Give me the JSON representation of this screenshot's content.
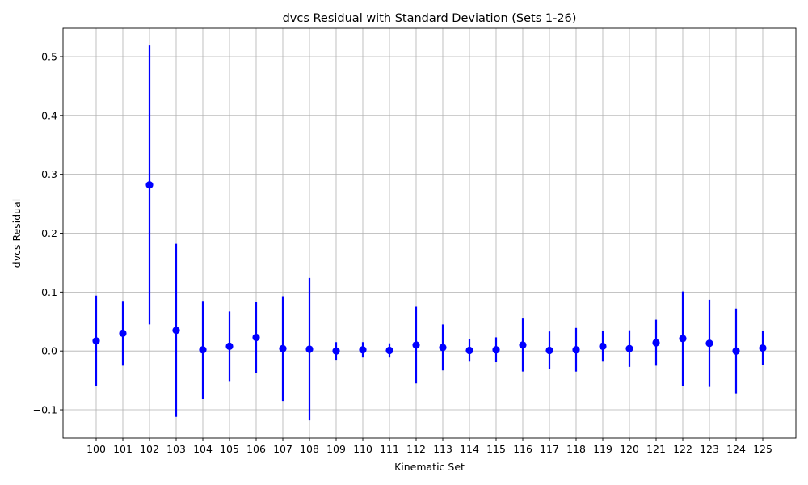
{
  "chart_data": {
    "type": "scatter",
    "title": "dvcs Residual with Standard Deviation (Sets 1-26)",
    "xlabel": "Kinematic Set",
    "ylabel": "dvcs Residual",
    "categories": [
      "100",
      "101",
      "102",
      "103",
      "104",
      "105",
      "106",
      "107",
      "108",
      "109",
      "110",
      "111",
      "112",
      "113",
      "114",
      "115",
      "116",
      "117",
      "118",
      "119",
      "120",
      "121",
      "122",
      "123",
      "124",
      "125"
    ],
    "series": [
      {
        "values": [
          0.017,
          0.03,
          0.282,
          0.035,
          0.002,
          0.008,
          0.023,
          0.004,
          0.003,
          0.0,
          0.002,
          0.001,
          0.01,
          0.006,
          0.001,
          0.002,
          0.01,
          0.001,
          0.002,
          0.008,
          0.004,
          0.014,
          0.021,
          0.013,
          0.0,
          0.005
        ],
        "std": [
          0.077,
          0.055,
          0.237,
          0.147,
          0.083,
          0.059,
          0.061,
          0.089,
          0.121,
          0.015,
          0.013,
          0.012,
          0.065,
          0.039,
          0.019,
          0.021,
          0.045,
          0.032,
          0.037,
          0.026,
          0.031,
          0.039,
          0.08,
          0.074,
          0.072,
          0.029
        ],
        "color": "#0000ff"
      }
    ],
    "ylim": [
      -0.148,
      0.548
    ],
    "yticks": [
      -0.1,
      0.0,
      0.1,
      0.2,
      0.3,
      0.4,
      0.5
    ],
    "ytick_labels": [
      "−0.1",
      "0.0",
      "0.1",
      "0.2",
      "0.3",
      "0.4",
      "0.5"
    ],
    "grid": true
  }
}
